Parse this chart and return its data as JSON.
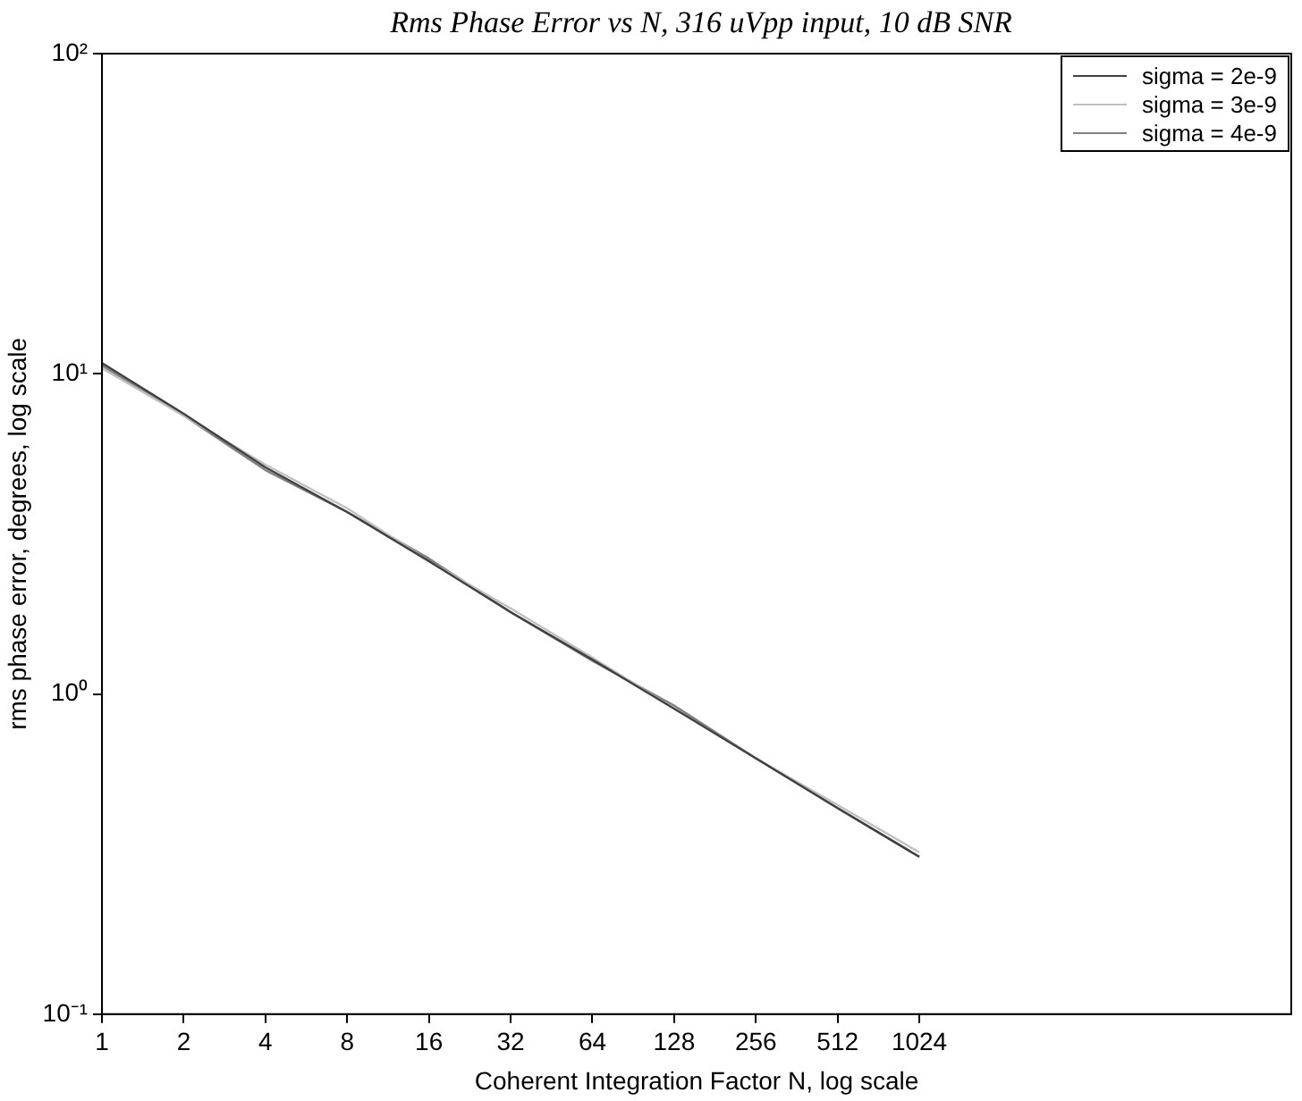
{
  "chart_data": {
    "type": "line",
    "title": "Rms Phase Error vs N, 316 uVpp input, 10 dB SNR",
    "xlabel": "Coherent Integration Factor N, log scale",
    "ylabel": "rms phase error, degrees, log scale",
    "x": [
      1,
      2,
      4,
      8,
      16,
      32,
      64,
      128,
      256,
      512,
      1024
    ],
    "series": [
      {
        "name": "sigma = 2e-9",
        "color": "#404040",
        "values": [
          10.8,
          7.5,
          5.1,
          3.7,
          2.6,
          1.8,
          1.28,
          0.9,
          0.63,
          0.44,
          0.31
        ]
      },
      {
        "name": "sigma = 3e-9",
        "color": "#c0c0c0",
        "values": [
          10.4,
          7.4,
          5.2,
          3.8,
          2.6,
          1.85,
          1.3,
          0.9,
          0.63,
          0.45,
          0.32
        ]
      },
      {
        "name": "sigma = 4e-9",
        "color": "#808080",
        "values": [
          10.6,
          7.4,
          5.0,
          3.7,
          2.65,
          1.8,
          1.27,
          0.92,
          0.63,
          0.44,
          0.31
        ]
      }
    ],
    "log": "xy",
    "xlim": [
      1,
      24000
    ],
    "ylim": [
      0.1,
      100
    ],
    "xticks": [
      1,
      2,
      4,
      8,
      16,
      32,
      64,
      128,
      256,
      512,
      1024
    ],
    "yticks": [
      {
        "value": 0.1,
        "label": "10⁻¹"
      },
      {
        "value": 1,
        "label": "10⁰"
      },
      {
        "value": 10,
        "label": "10¹"
      },
      {
        "value": 100,
        "label": "10²"
      }
    ],
    "grid": false,
    "legend": "top right",
    "marker": "none",
    "line_style": "solid"
  }
}
